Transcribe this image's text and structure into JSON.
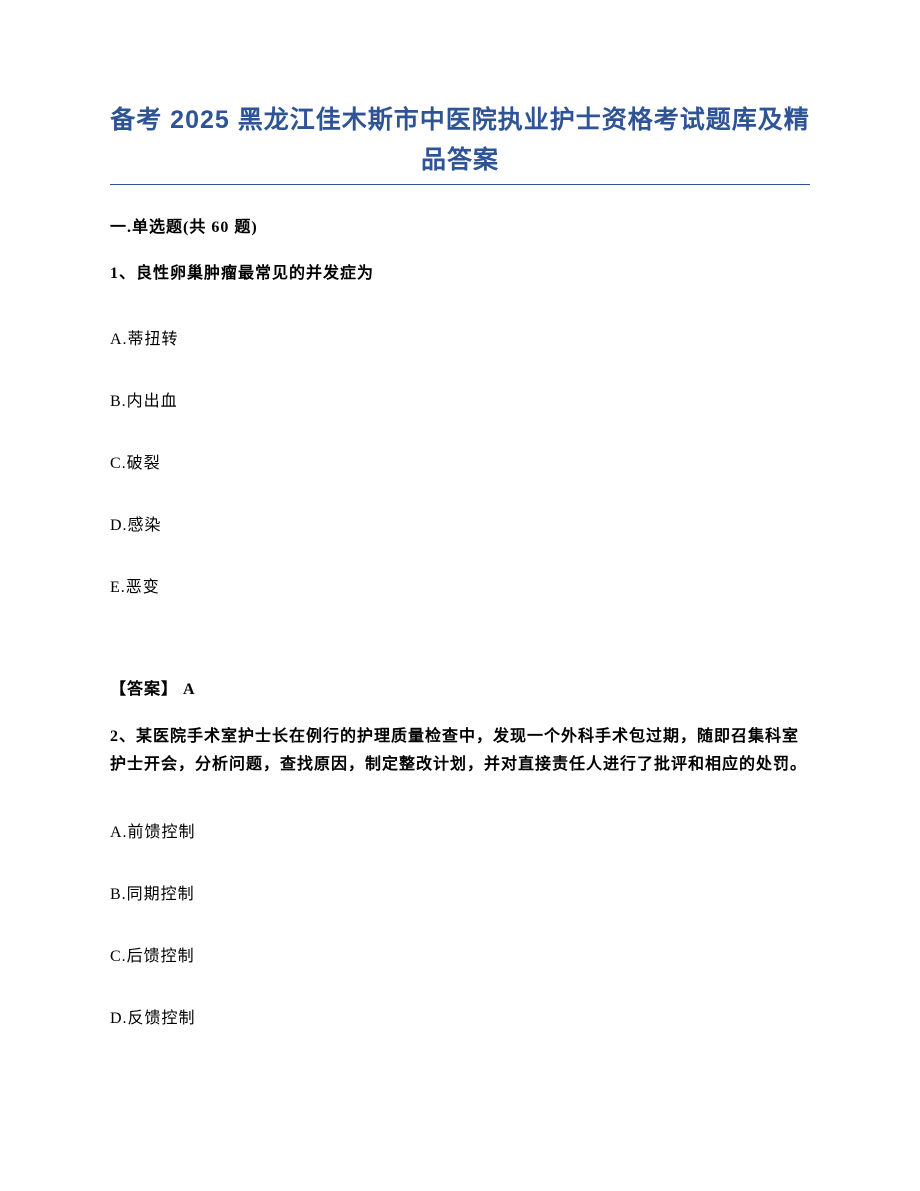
{
  "title": "备考 2025 黑龙江佳木斯市中医院执业护士资格考试题库及精品答案",
  "section_header": "一.单选题(共 60 题)",
  "question1": {
    "text": "1、良性卵巢肿瘤最常见的并发症为",
    "options": {
      "A": "A.蒂扭转",
      "B": "B.内出血",
      "C": "C.破裂",
      "D": "D.感染",
      "E": "E.恶变"
    },
    "answer": "【答案】 A"
  },
  "question2": {
    "text": "2、某医院手术室护士长在例行的护理质量检查中，发现一个外科手术包过期，随即召集科室护士开会，分析问题，查找原因，制定整改计划，并对直接责任人进行了批评和相应的处罚。",
    "options": {
      "A": "A.前馈控制",
      "B": "B.同期控制",
      "C": "C.后馈控制",
      "D": "D.反馈控制"
    }
  },
  "colors": {
    "title_color": "#2e5496",
    "text_color": "#000000",
    "background": "#ffffff",
    "underline_color": "#2e5496"
  },
  "typography": {
    "title_fontsize": 25,
    "body_fontsize": 16,
    "title_font": "Microsoft YaHei",
    "body_font": "SimSun"
  }
}
